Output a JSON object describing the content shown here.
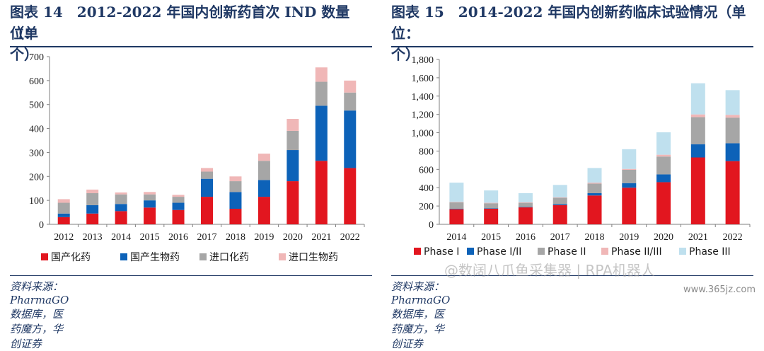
{
  "colors": {
    "title": "#1f3864",
    "series_red": "#e2161f",
    "series_blue": "#0d62b8",
    "series_gray": "#a6a6a6",
    "series_pink": "#f0b7b7",
    "series_lightblue": "#bfe0ee"
  },
  "figures": [
    {
      "title_line1": "图表 14　2012-2022 年国内创新药首次 IND 数量（单",
      "title_line2": "位：个）",
      "source": "资料来源：PharmaGO 数据库，医药魔方，华创证券"
    },
    {
      "title_line1": "图表 15　2014-2022 年国内创新药临床试验情况（单",
      "title_line2": "位：个）",
      "source": "资料来源：PharmaGO 数据库，医药魔方，华创证券"
    }
  ],
  "watermark": "@数阔八爪鱼采集器 | RPA机器人",
  "site": "www.365jz.com",
  "chart_data": [
    {
      "type": "bar",
      "stacked": true,
      "categories": [
        "2012",
        "2013",
        "2014",
        "2015",
        "2016",
        "2017",
        "2018",
        "2019",
        "2020",
        "2021",
        "2022"
      ],
      "series": [
        {
          "name": "国产化药",
          "color": "#e2161f",
          "values": [
            30,
            45,
            55,
            70,
            60,
            115,
            65,
            115,
            180,
            265,
            235
          ]
        },
        {
          "name": "国产生物药",
          "color": "#0d62b8",
          "values": [
            15,
            35,
            30,
            30,
            30,
            75,
            70,
            70,
            130,
            230,
            240
          ]
        },
        {
          "name": "进口化药",
          "color": "#a6a6a6",
          "values": [
            45,
            50,
            40,
            25,
            25,
            30,
            45,
            80,
            80,
            100,
            75
          ]
        },
        {
          "name": "进口生物药",
          "color": "#f0b7b7",
          "values": [
            15,
            15,
            8,
            10,
            8,
            15,
            20,
            30,
            50,
            60,
            50
          ]
        }
      ],
      "yticks": [
        "0",
        "100",
        "200",
        "300",
        "400",
        "500",
        "600",
        "700"
      ],
      "ylim": [
        0,
        700
      ],
      "grid": false,
      "legend": "bottom"
    },
    {
      "type": "bar",
      "stacked": true,
      "categories": [
        "2014",
        "2015",
        "2016",
        "2017",
        "2018",
        "2019",
        "2020",
        "2021",
        "2022"
      ],
      "series": [
        {
          "name": "Phase I",
          "color": "#e2161f",
          "values": [
            165,
            170,
            185,
            210,
            315,
            400,
            460,
            730,
            690
          ]
        },
        {
          "name": "Phase I/II",
          "color": "#0d62b8",
          "values": [
            5,
            5,
            5,
            10,
            25,
            50,
            85,
            145,
            195
          ]
        },
        {
          "name": "Phase II",
          "color": "#a6a6a6",
          "values": [
            70,
            55,
            45,
            70,
            105,
            145,
            195,
            295,
            280
          ]
        },
        {
          "name": "Phase II/III",
          "color": "#f0b7b7",
          "values": [
            5,
            5,
            5,
            5,
            10,
            10,
            20,
            30,
            30
          ]
        },
        {
          "name": "Phase III",
          "color": "#bfe0ee",
          "values": [
            210,
            135,
            100,
            135,
            160,
            215,
            245,
            340,
            270
          ]
        }
      ],
      "yticks": [
        "0",
        "200",
        "400",
        "600",
        "800",
        "1,000",
        "1,200",
        "1,400",
        "1,600",
        "1,800"
      ],
      "ylim": [
        0,
        1800
      ],
      "grid": false,
      "legend": "bottom"
    }
  ]
}
